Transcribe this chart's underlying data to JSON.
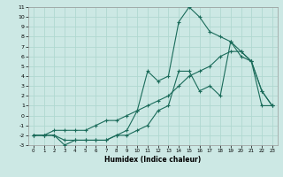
{
  "title": "",
  "xlabel": "Humidex (Indice chaleur)",
  "bg_color": "#cce8e4",
  "grid_color": "#b0d8d0",
  "line_color": "#1a6b5a",
  "x_data": [
    0,
    1,
    2,
    3,
    4,
    5,
    6,
    7,
    8,
    9,
    10,
    11,
    12,
    13,
    14,
    15,
    16,
    17,
    18,
    19,
    20,
    21,
    22,
    23
  ],
  "line1": [
    -2,
    -2,
    -2,
    -3,
    -2.5,
    -2.5,
    -2.5,
    -2.5,
    -2,
    -2,
    -1.5,
    -1,
    0.5,
    1,
    4.5,
    4.5,
    2.5,
    3.0,
    2.0,
    7.5,
    6.5,
    5.5,
    2.5,
    1
  ],
  "line2": [
    -2,
    -2,
    -2,
    -2.5,
    -2.5,
    -2.5,
    -2.5,
    -2.5,
    -2,
    -1.5,
    0.5,
    4.5,
    3.5,
    4.0,
    9.5,
    11,
    10,
    8.5,
    8.0,
    7.5,
    6.0,
    5.5,
    2.5,
    1
  ],
  "line3": [
    -2,
    -2,
    -1.5,
    -1.5,
    -1.5,
    -1.5,
    -1,
    -0.5,
    -0.5,
    0,
    0.5,
    1,
    1.5,
    2,
    3,
    4,
    4.5,
    5,
    6,
    6.5,
    6.5,
    5.5,
    1.0,
    1
  ],
  "xlim": [
    -0.5,
    23.5
  ],
  "ylim": [
    -3,
    11
  ],
  "yticks": [
    -3,
    -2,
    -1,
    0,
    1,
    2,
    3,
    4,
    5,
    6,
    7,
    8,
    9,
    10,
    11
  ],
  "xticks": [
    0,
    1,
    2,
    3,
    4,
    5,
    6,
    7,
    8,
    9,
    10,
    11,
    12,
    13,
    14,
    15,
    16,
    17,
    18,
    19,
    20,
    21,
    22,
    23
  ]
}
